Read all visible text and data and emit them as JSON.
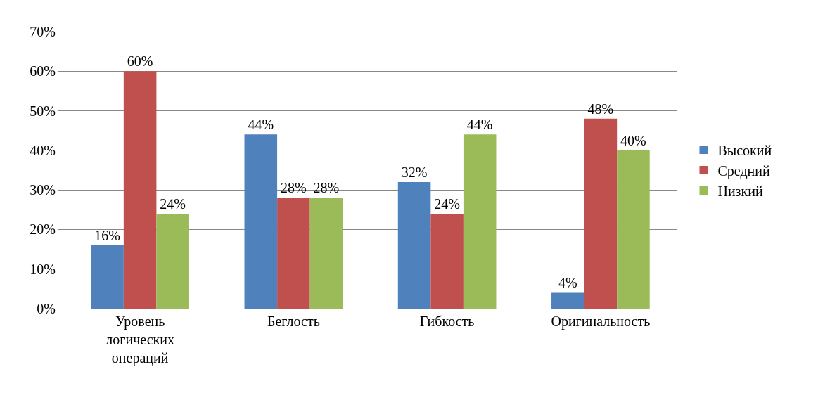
{
  "chart_data": {
    "type": "bar",
    "categories": [
      "Уровень\nлогических\nопераций",
      "Беглость",
      "Гибкость",
      "Оригинальность"
    ],
    "series": [
      {
        "name": "Высокий",
        "color": "#4f81bd",
        "values": [
          16,
          44,
          32,
          4
        ],
        "value_labels": [
          "16%",
          "44%",
          "32%",
          "4%"
        ]
      },
      {
        "name": "Средний",
        "color": "#c0504d",
        "values": [
          60,
          28,
          24,
          48
        ],
        "value_labels": [
          "60%",
          "28%",
          "24%",
          "48%"
        ]
      },
      {
        "name": "Низкий",
        "color": "#9bbb59",
        "values": [
          24,
          28,
          44,
          40
        ],
        "value_labels": [
          "24%",
          "28%",
          "44%",
          "40%"
        ]
      }
    ],
    "ylim": [
      0,
      70
    ],
    "yticks": [
      {
        "value": 0,
        "label": "0%"
      },
      {
        "value": 10,
        "label": "10%"
      },
      {
        "value": 20,
        "label": "20%"
      },
      {
        "value": 30,
        "label": "30%"
      },
      {
        "value": 40,
        "label": "40%"
      },
      {
        "value": 50,
        "label": "50%"
      },
      {
        "value": 60,
        "label": "60%"
      },
      {
        "value": 70,
        "label": "70%"
      }
    ],
    "grid": "y",
    "legend": "right"
  }
}
